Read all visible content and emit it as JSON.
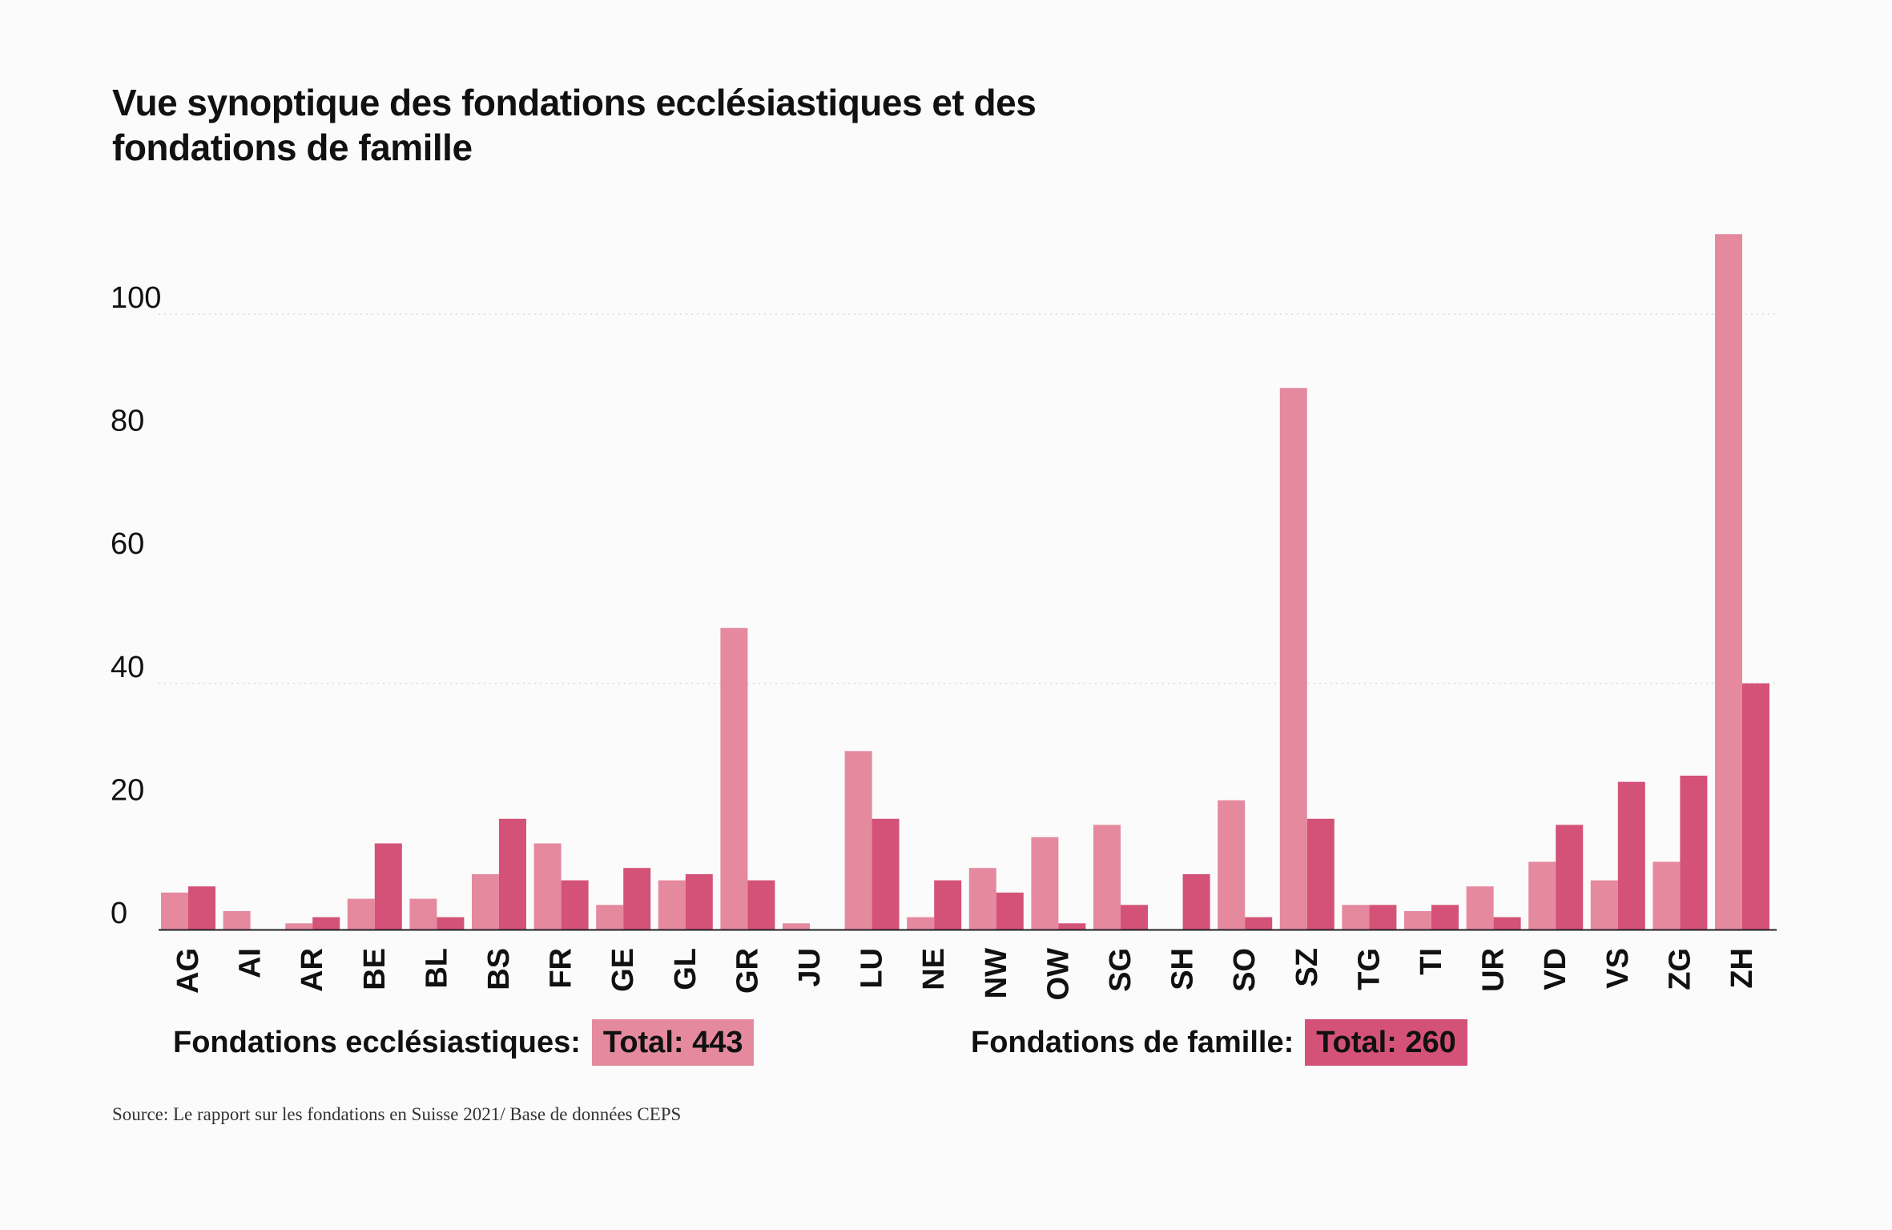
{
  "colors": {
    "ecclesiastical": "#e5899f",
    "family": "#d45277",
    "grid": "#d9d9d9",
    "axis": "#222222",
    "text": "#111111"
  },
  "legend": {
    "ecclesiastical_label": "Fondations ecclésiastiques:",
    "ecclesiastical_total": "Total: 443",
    "family_label": "Fondations de famille:",
    "family_total": "Total: 260"
  },
  "source": "Source: Le rapport sur les fondations en Suisse 2021/ Base de données CEPS",
  "chart_data": {
    "type": "bar",
    "title": "Vue synoptique des fondations ecclésiastiques et des fondations de famille",
    "xlabel": "",
    "ylabel": "",
    "ylim": [
      0,
      110
    ],
    "yticks": [
      0,
      20,
      40,
      60,
      80,
      100
    ],
    "gridlines_at": [
      40,
      100
    ],
    "grid": "dotted",
    "legend_position": "bottom",
    "categories": [
      "AG",
      "AI",
      "AR",
      "BE",
      "BL",
      "BS",
      "FR",
      "GE",
      "GL",
      "GR",
      "JU",
      "LU",
      "NE",
      "NW",
      "OW",
      "SG",
      "SH",
      "SO",
      "SZ",
      "TG",
      "TI",
      "UR",
      "VD",
      "VS",
      "ZG",
      "ZH"
    ],
    "series": [
      {
        "name": "Fondations ecclésiastiques",
        "color": "#e5899f",
        "values": [
          6,
          3,
          1,
          5,
          5,
          9,
          14,
          4,
          8,
          49,
          1,
          29,
          2,
          10,
          15,
          17,
          0,
          21,
          88,
          4,
          3,
          7,
          11,
          8,
          11,
          113
        ]
      },
      {
        "name": "Fondations de famille",
        "color": "#d45277",
        "values": [
          7,
          0,
          2,
          14,
          2,
          18,
          8,
          10,
          9,
          8,
          0,
          18,
          8,
          6,
          1,
          4,
          9,
          2,
          18,
          4,
          4,
          2,
          17,
          24,
          25,
          40
        ]
      }
    ]
  }
}
